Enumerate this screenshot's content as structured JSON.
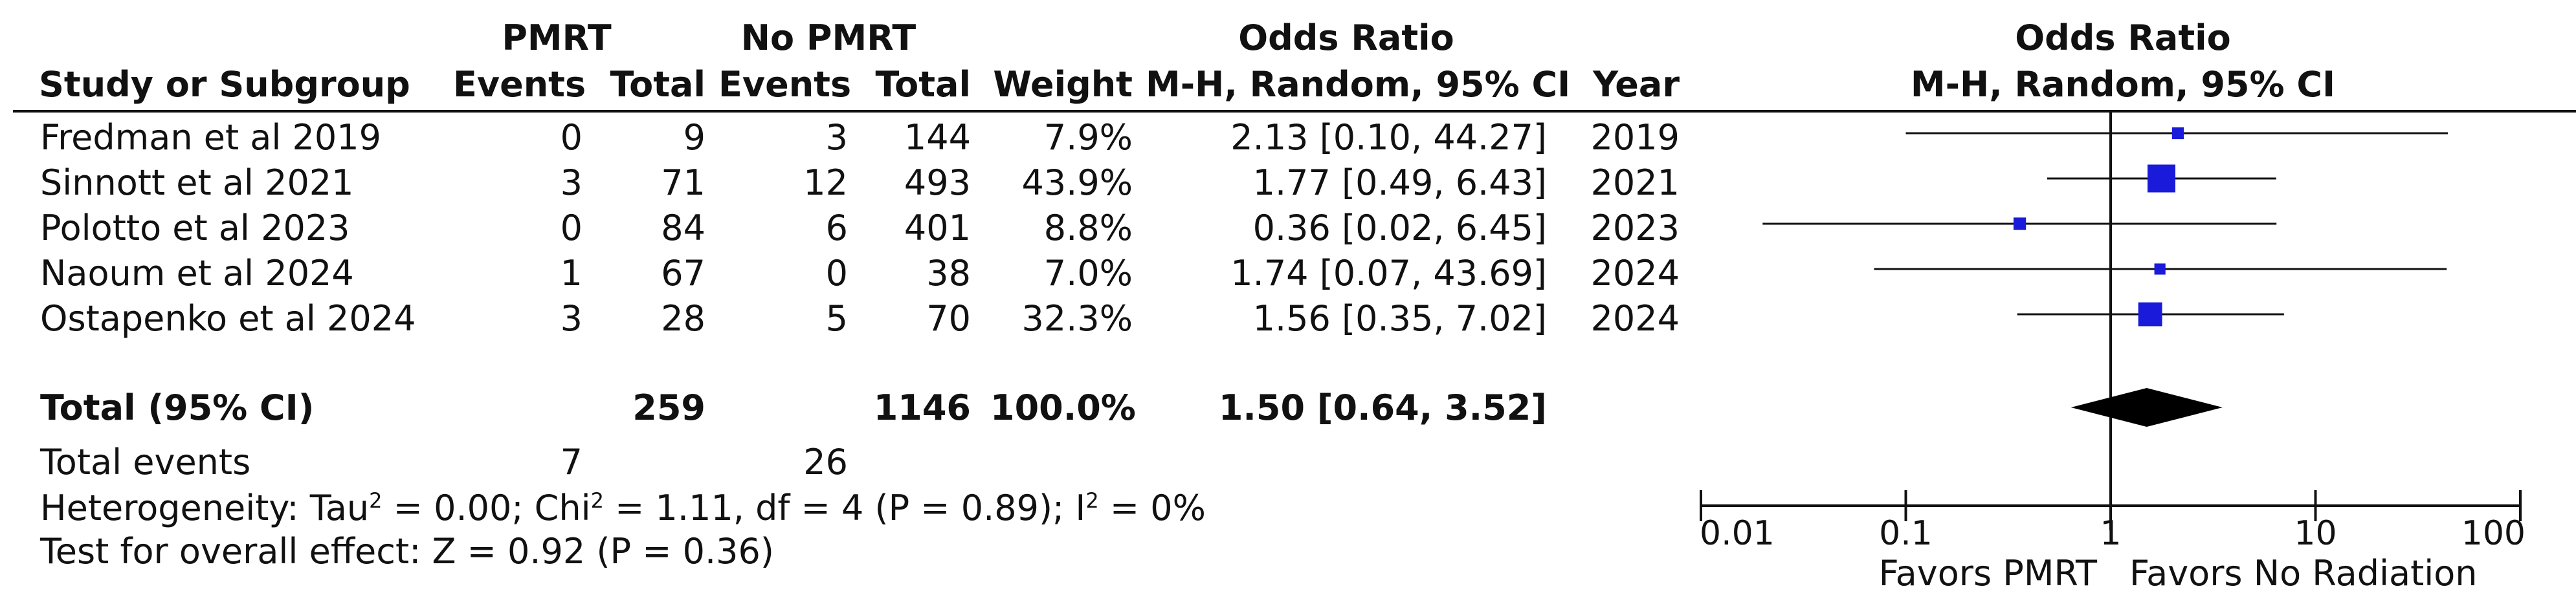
{
  "headers": {
    "group1": "PMRT",
    "group2": "No PMRT",
    "or_table": "Odds Ratio",
    "or_plot": "Odds Ratio",
    "study": "Study or Subgroup",
    "events1": "Events",
    "total1": "Total",
    "events2": "Events",
    "total2": "Total",
    "weight": "Weight",
    "method": "M-H, Random, 95% CI",
    "year": "Year",
    "plot_method": "M-H, Random, 95% CI"
  },
  "studies": [
    {
      "name": "Fredman et al 2019",
      "events1": "0",
      "total1": "9",
      "events2": "3",
      "total2": "144",
      "weight": "7.9%",
      "ci_text": "2.13 [0.10, 44.27]",
      "year": "2019"
    },
    {
      "name": "Sinnott et al 2021",
      "events1": "3",
      "total1": "71",
      "events2": "12",
      "total2": "493",
      "weight": "43.9%",
      "ci_text": "1.77 [0.49, 6.43]",
      "year": "2021"
    },
    {
      "name": "Polotto et al 2023",
      "events1": "0",
      "total1": "84",
      "events2": "6",
      "total2": "401",
      "weight": "8.8%",
      "ci_text": "0.36 [0.02, 6.45]",
      "year": "2023"
    },
    {
      "name": "Naoum et al 2024",
      "events1": "1",
      "total1": "67",
      "events2": "0",
      "total2": "38",
      "weight": "7.0%",
      "ci_text": "1.74 [0.07, 43.69]",
      "year": "2024"
    },
    {
      "name": "Ostapenko et al 2024",
      "events1": "3",
      "total1": "28",
      "events2": "5",
      "total2": "70",
      "weight": "32.3%",
      "ci_text": "1.56 [0.35, 7.02]",
      "year": "2024"
    }
  ],
  "total": {
    "label": "Total (95% CI)",
    "total1": "259",
    "total2": "1146",
    "weight": "100.0%",
    "ci_text": "1.50 [0.64, 3.52]"
  },
  "events": {
    "label": "Total events",
    "events1": "7",
    "events2": "26"
  },
  "heterogeneity": {
    "prefix": "Heterogeneity: Tau",
    "a": " = 0.00; Chi",
    "b": " = 1.11, df = 4 (P = 0.89); I",
    "c": " = 0%",
    "sup": "2"
  },
  "overall": "Test for overall effect: Z = 0.92 (P = 0.36)",
  "favors": {
    "left": "Favors PMRT",
    "right": "Favors No Radiation"
  },
  "colors": {
    "marker": "#1a1adb",
    "line": "#111111"
  },
  "chart_data": {
    "type": "forest",
    "scale": "log",
    "xlim": [
      0.01,
      100
    ],
    "xticks": [
      0.01,
      0.1,
      1,
      10,
      100
    ],
    "xtick_labels": [
      "0.01",
      "0.1",
      "1",
      "10",
      "100"
    ],
    "reference": 1,
    "studies": [
      {
        "name": "Fredman et al 2019",
        "or": 2.13,
        "lower": 0.1,
        "upper": 44.27,
        "weight": 7.9
      },
      {
        "name": "Sinnott et al 2021",
        "or": 1.77,
        "lower": 0.49,
        "upper": 6.43,
        "weight": 43.9
      },
      {
        "name": "Polotto et al 2023",
        "or": 0.36,
        "lower": 0.02,
        "upper": 6.45,
        "weight": 8.8
      },
      {
        "name": "Naoum et al 2024",
        "or": 1.74,
        "lower": 0.07,
        "upper": 43.69,
        "weight": 7.0
      },
      {
        "name": "Ostapenko et al 2024",
        "or": 1.56,
        "lower": 0.35,
        "upper": 7.02,
        "weight": 32.3
      }
    ],
    "pooled": {
      "or": 1.5,
      "lower": 0.64,
      "upper": 3.52
    }
  }
}
